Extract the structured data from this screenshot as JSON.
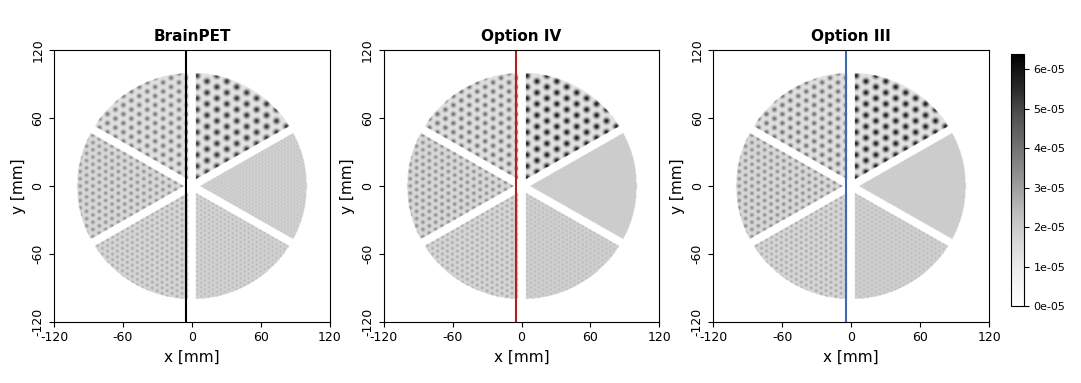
{
  "chart_data": [
    {
      "type": "heatmap",
      "title": "BrainPET",
      "xlabel": "x [mm]",
      "ylabel": "y [mm]",
      "xlim": [
        -120,
        120
      ],
      "ylim": [
        -120,
        120
      ],
      "xticks": [
        -120,
        -60,
        0,
        60,
        120
      ],
      "yticks": [
        -120,
        -60,
        0,
        60,
        120
      ],
      "phantom_radius": 100,
      "sectors": [
        {
          "angle_from": 30,
          "angle_to": 90,
          "rod_diameter": 5.0,
          "peak": 5.5e-05,
          "background": 1e-05
        },
        {
          "angle_from": 90,
          "angle_to": 150,
          "rod_diameter": 4.0,
          "peak": 4e-05,
          "background": 1.2e-05
        },
        {
          "angle_from": 150,
          "angle_to": 210,
          "rod_diameter": 3.2,
          "peak": 3.5e-05,
          "background": 1.5e-05
        },
        {
          "angle_from": 210,
          "angle_to": 270,
          "rod_diameter": 2.5,
          "peak": 3e-05,
          "background": 1.6e-05
        },
        {
          "angle_from": 270,
          "angle_to": 330,
          "rod_diameter": 2.0,
          "peak": 2.6e-05,
          "background": 1.7e-05
        },
        {
          "angle_from": 330,
          "angle_to": 390,
          "rod_diameter": 1.6,
          "peak": 2.3e-05,
          "background": 1.8e-05
        }
      ],
      "profile_line": {
        "x": -5,
        "color": "#000000"
      }
    },
    {
      "type": "heatmap",
      "title": "Option IV",
      "xlabel": "x [mm]",
      "ylabel": "y [mm]",
      "xlim": [
        -120,
        120
      ],
      "ylim": [
        -120,
        120
      ],
      "xticks": [
        -120,
        -60,
        0,
        60,
        120
      ],
      "yticks": [
        -120,
        -60,
        0,
        60,
        120
      ],
      "phantom_radius": 100,
      "sectors": [
        {
          "angle_from": 30,
          "angle_to": 90,
          "rod_diameter": 5.0,
          "peak": 6e-05,
          "background": 1e-05
        },
        {
          "angle_from": 90,
          "angle_to": 150,
          "rod_diameter": 4.0,
          "peak": 4.2e-05,
          "background": 1.2e-05
        },
        {
          "angle_from": 150,
          "angle_to": 210,
          "rod_diameter": 3.2,
          "peak": 3.6e-05,
          "background": 1.5e-05
        },
        {
          "angle_from": 210,
          "angle_to": 270,
          "rod_diameter": 2.5,
          "peak": 3e-05,
          "background": 1.6e-05
        },
        {
          "angle_from": 270,
          "angle_to": 330,
          "rod_diameter": 2.0,
          "peak": 2.5e-05,
          "background": 1.8e-05
        },
        {
          "angle_from": 330,
          "angle_to": 390,
          "rod_diameter": 1.6,
          "peak": 2.1e-05,
          "background": 1.9e-05
        }
      ],
      "profile_line": {
        "x": -5,
        "color": "#b22222"
      }
    },
    {
      "type": "heatmap",
      "title": "Option III",
      "xlabel": "x [mm]",
      "ylabel": "y [mm]",
      "xlim": [
        -120,
        120
      ],
      "ylim": [
        -120,
        120
      ],
      "xticks": [
        -120,
        -60,
        0,
        60,
        120
      ],
      "yticks": [
        -120,
        -60,
        0,
        60,
        120
      ],
      "phantom_radius": 100,
      "sectors": [
        {
          "angle_from": 30,
          "angle_to": 90,
          "rod_diameter": 5.0,
          "peak": 6e-05,
          "background": 1e-05
        },
        {
          "angle_from": 90,
          "angle_to": 150,
          "rod_diameter": 4.0,
          "peak": 4.2e-05,
          "background": 1.2e-05
        },
        {
          "angle_from": 150,
          "angle_to": 210,
          "rod_diameter": 3.2,
          "peak": 3.6e-05,
          "background": 1.5e-05
        },
        {
          "angle_from": 210,
          "angle_to": 270,
          "rod_diameter": 2.5,
          "peak": 3e-05,
          "background": 1.6e-05
        },
        {
          "angle_from": 270,
          "angle_to": 330,
          "rod_diameter": 2.0,
          "peak": 2.5e-05,
          "background": 1.8e-05
        },
        {
          "angle_from": 330,
          "angle_to": 390,
          "rod_diameter": 1.6,
          "peak": 2.1e-05,
          "background": 1.9e-05
        }
      ],
      "profile_line": {
        "x": -5,
        "color": "#4169b0"
      },
      "colorbar": {
        "range": [
          0,
          6.4e-05
        ],
        "ticks": [
          {
            "value": 0,
            "label": "0e-05"
          },
          {
            "value": 1e-05,
            "label": "1e-05"
          },
          {
            "value": 2e-05,
            "label": "2e-05"
          },
          {
            "value": 3e-05,
            "label": "3e-05"
          },
          {
            "value": 4e-05,
            "label": "4e-05"
          },
          {
            "value": 5e-05,
            "label": "5e-05"
          },
          {
            "value": 6e-05,
            "label": "6e-05"
          }
        ]
      }
    }
  ]
}
